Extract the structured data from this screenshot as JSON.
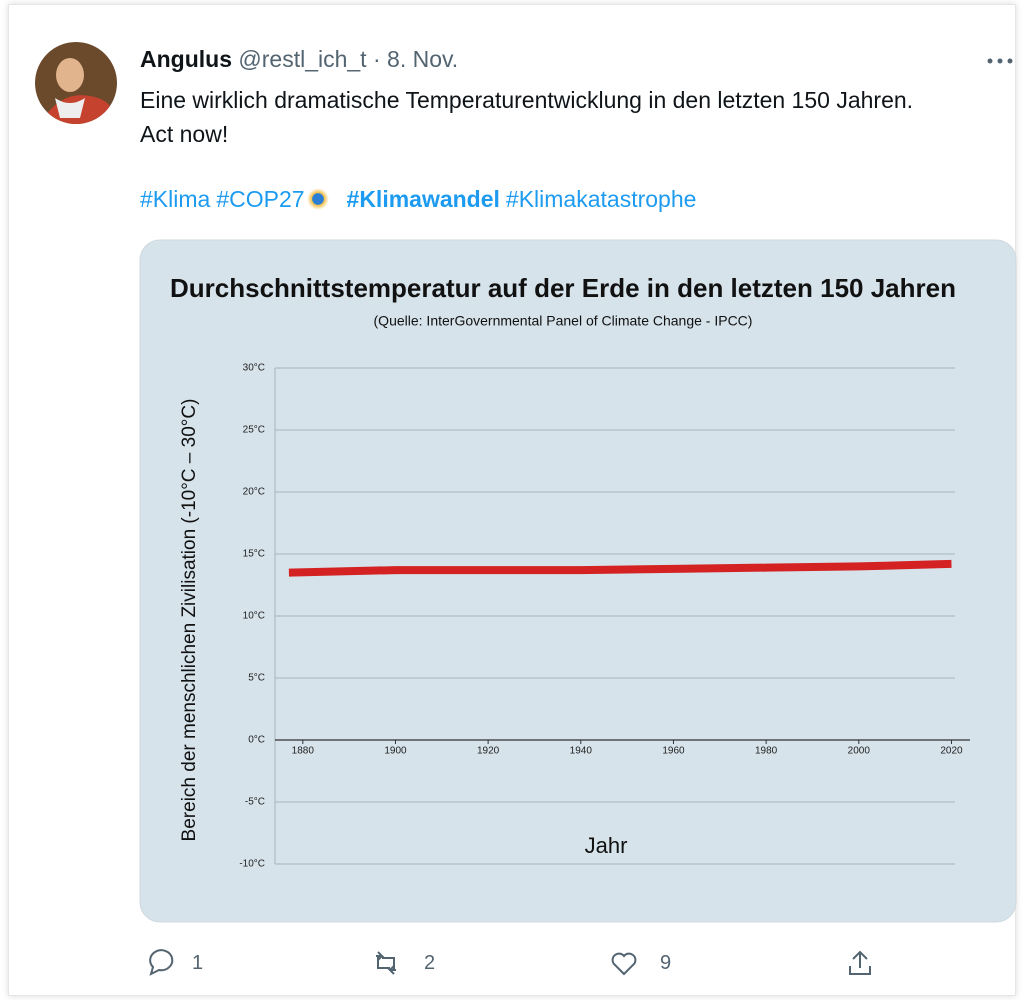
{
  "tweet": {
    "name": "Angulus",
    "handle": "@restl_ich_t",
    "separator": "·",
    "date": "8. Nov.",
    "text": "Eine wirklich dramatische Temperaturentwicklung in den letzten 150 Jahren. Act now!",
    "hashtags": [
      "#Klima",
      "#COP27",
      "#Klimawandel",
      "#Klimakatastrophe"
    ],
    "replies": 1,
    "retweets": 2,
    "likes": 9
  },
  "chart_data": {
    "type": "line",
    "title": "Durchschnittstemperatur auf der Erde in den letzten 150 Jahren",
    "subtitle": "(Quelle: InterGovernmental Panel of Climate Change - IPCC)",
    "x_label": "Jahr",
    "y_label": "Bereich der menschlichen Zivilisation  (-10°C – 30°C)",
    "x": [
      1877,
      1900,
      1920,
      1940,
      1960,
      1980,
      2000,
      2020
    ],
    "series": [
      {
        "name": "Durchschnittstemperatur",
        "color": "#d42222",
        "values": [
          13.5,
          13.7,
          13.7,
          13.7,
          13.8,
          13.9,
          14.0,
          14.2
        ]
      }
    ],
    "xlim": [
      1874,
      2024
    ],
    "xticks": [
      1880,
      1900,
      1920,
      1940,
      1960,
      1980,
      2000,
      2020
    ],
    "ylim": [
      -10,
      30
    ],
    "yticks": [
      {
        "value": -10,
        "label": "-10°C"
      },
      {
        "value": -5,
        "label": "-5°C"
      },
      {
        "value": 0,
        "label": "0°C"
      },
      {
        "value": 5,
        "label": "5°C"
      },
      {
        "value": 10,
        "label": "10°C"
      },
      {
        "value": 15,
        "label": "15°C"
      },
      {
        "value": 20,
        "label": "20°C"
      },
      {
        "value": 25,
        "label": "25°C"
      },
      {
        "value": 30,
        "label": "30°C"
      }
    ],
    "grid": true,
    "background": "#d6e3eb"
  }
}
